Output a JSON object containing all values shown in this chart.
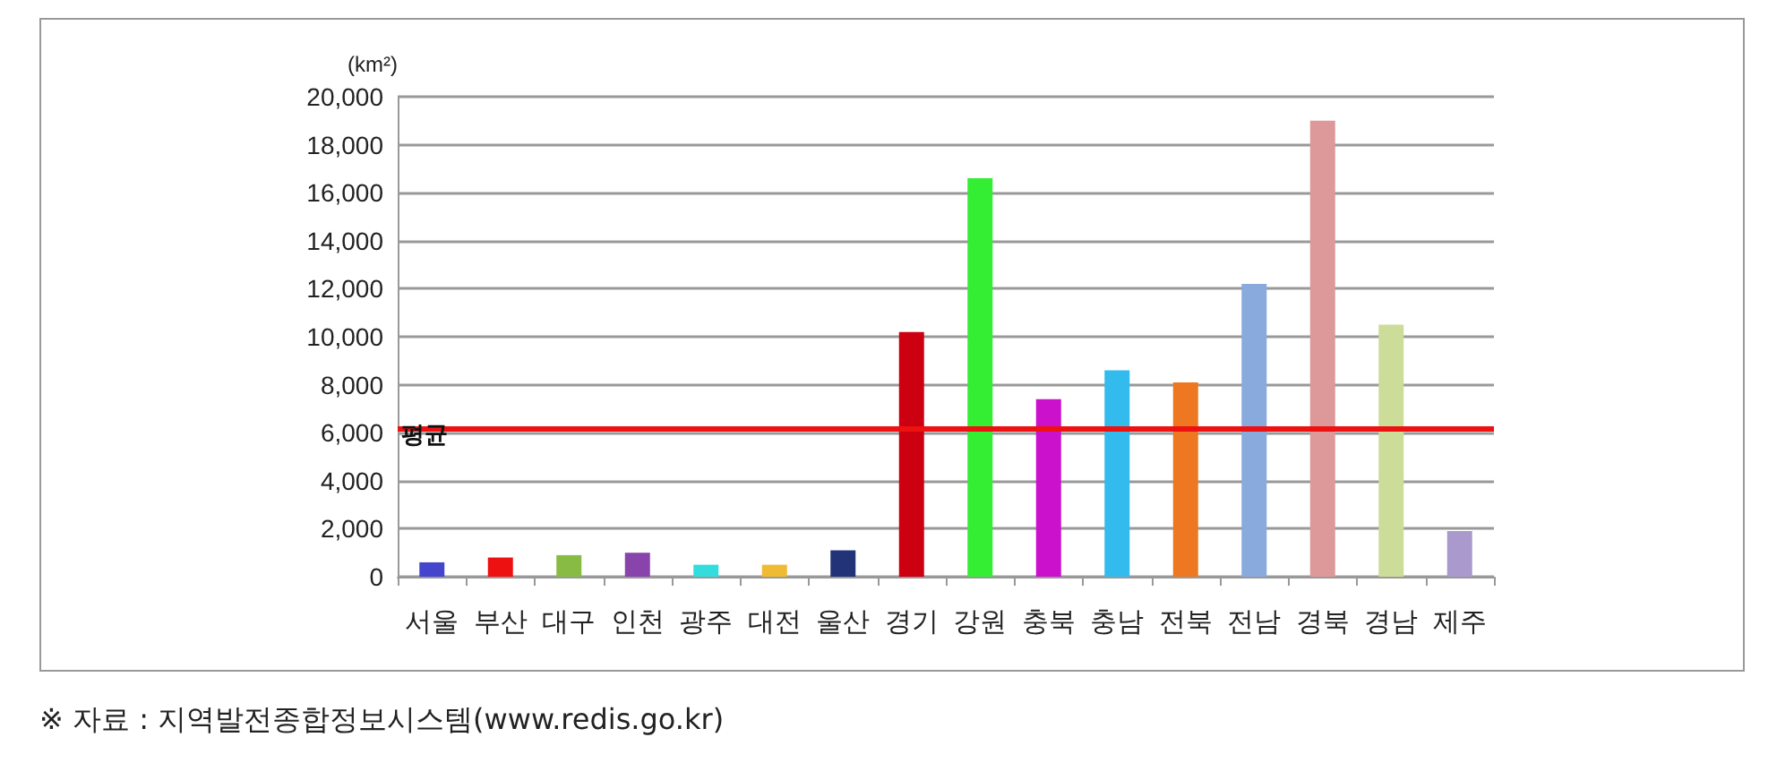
{
  "chart_data": {
    "type": "bar",
    "ylabel": "(km²)",
    "categories": [
      "서울",
      "부산",
      "대구",
      "인천",
      "광주",
      "대전",
      "울산",
      "경기",
      "강원",
      "충북",
      "충남",
      "전북",
      "전남",
      "경북",
      "경남",
      "제주"
    ],
    "values": [
      600,
      800,
      900,
      1000,
      500,
      500,
      1100,
      10200,
      16600,
      7400,
      8600,
      8100,
      12200,
      19000,
      10500,
      1900
    ],
    "colors": [
      "#4444cc",
      "#ee1111",
      "#88bb44",
      "#8844aa",
      "#33dddd",
      "#eebb33",
      "#223377",
      "#cc0011",
      "#33ee33",
      "#cc11cc",
      "#33bbee",
      "#ee7722",
      "#88aadd",
      "#dd9999",
      "#ccdd99",
      "#aa99cc"
    ],
    "ylim": [
      0,
      20000
    ],
    "yticks": [
      0,
      {
        "value": 2000,
        "label": "2,000"
      },
      {
        "value": 4000,
        "label": "4,000"
      },
      {
        "value": 6000,
        "label": "6,000"
      },
      {
        "value": 8000,
        "label": "8,000"
      },
      {
        "value": 10000,
        "label": "10,000"
      },
      {
        "value": 12000,
        "label": "12,000"
      },
      {
        "value": 14000,
        "label": "14,000"
      },
      {
        "value": 16000,
        "label": "16,000"
      },
      {
        "value": 18000,
        "label": "18,000"
      },
      {
        "value": 20000,
        "label": "20,000"
      }
    ],
    "grid": "y",
    "ref_lines": [
      {
        "axis": "y",
        "value": 6200,
        "label": "평균",
        "color": "#ee1111"
      }
    ],
    "annotations": [
      "※ 자료 : 지역발전종합정보시스템(www.redis.go.kr)"
    ]
  }
}
